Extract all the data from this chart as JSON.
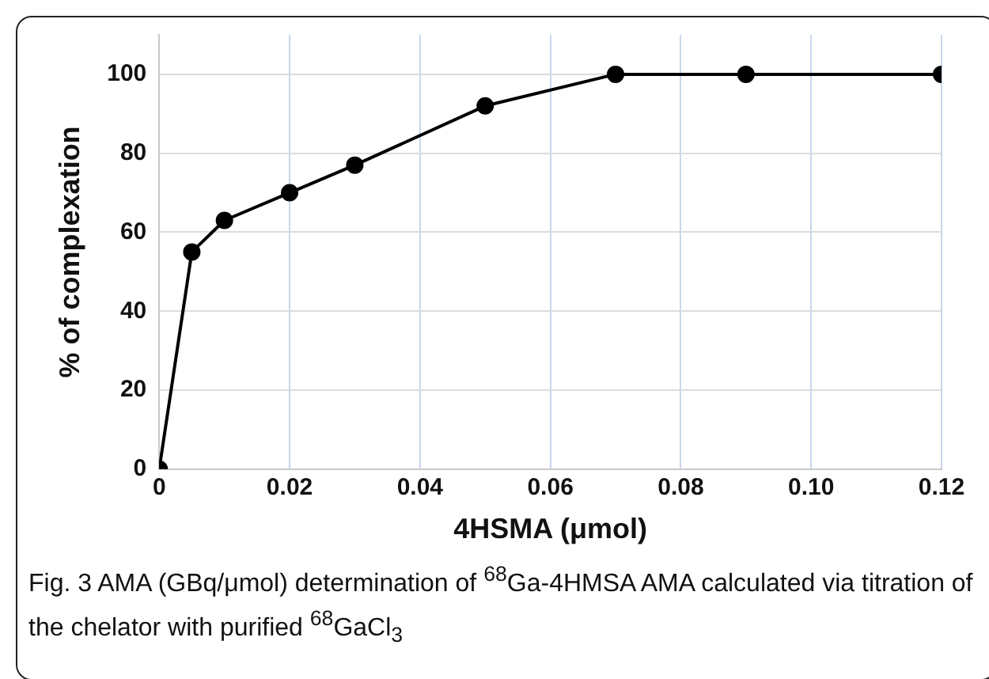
{
  "chart_data": {
    "type": "line",
    "xlabel": "4HSMA (μmol)",
    "ylabel": "% of complexation",
    "x": [
      0,
      0.005,
      0.01,
      0.02,
      0.03,
      0.05,
      0.07,
      0.09,
      0.12
    ],
    "series": [
      {
        "color": "#000000",
        "values": [
          0,
          55,
          63,
          70,
          77,
          92,
          100,
          100,
          100
        ]
      }
    ],
    "xlim": [
      0,
      0.12
    ],
    "xticks": [
      0,
      0.02,
      0.04,
      0.06,
      0.08,
      {
        "value": 0.1,
        "label": "0.10"
      },
      0.12
    ],
    "ylim": [
      0,
      110
    ],
    "yticks": [
      0,
      20,
      40,
      60,
      80,
      100
    ],
    "grid": true,
    "marker": "circle",
    "line_style": "solid",
    "legend": false,
    "annotations": [
      "Fig. 3  AMA (GBq/μmol) determination of $^{68}$Ga-4HMSA AMA calculated via titration of the chelator with purified $^{68}$GaCl$_{3}$"
    ]
  }
}
